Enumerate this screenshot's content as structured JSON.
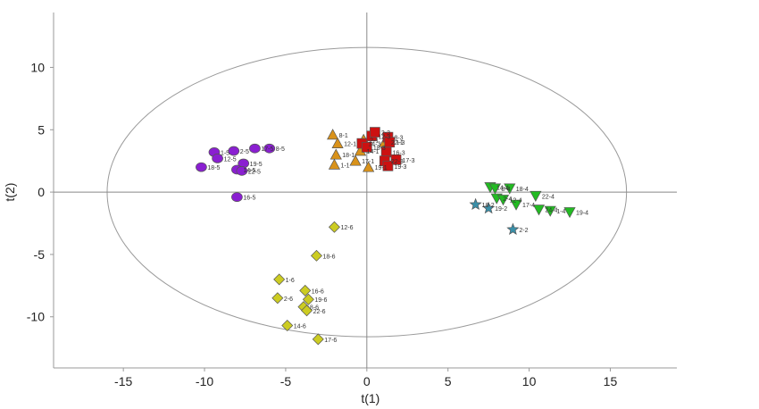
{
  "chart_data": {
    "type": "scatter",
    "title": "",
    "xlabel": "t(1)",
    "ylabel": "t(2)",
    "xlim": [
      -19.3,
      19.1
    ],
    "ylim": [
      -14.1,
      14.4
    ],
    "xticks": [
      -15,
      -10,
      -5,
      0,
      5,
      10,
      15
    ],
    "yticks": [
      -10,
      -5,
      0,
      5,
      10
    ],
    "xtick_labels": [
      "-15",
      "-10",
      "-5",
      "0",
      "5",
      "10",
      "15"
    ],
    "ytick_labels": [
      "-10",
      "-5",
      "0",
      "5",
      "10"
    ],
    "grid": false,
    "zero_lines": true,
    "confidence_ellipse": {
      "center": [
        0,
        0
      ],
      "rx": 16,
      "ry": 11.6
    },
    "series": [
      {
        "group": "1",
        "marker": "triangle-up",
        "color": "#d9921a",
        "points": [
          {
            "label": "8-1",
            "x": -2.1,
            "y": 4.6
          },
          {
            "label": "2-1",
            "x": -0.2,
            "y": 4.2
          },
          {
            "label": "12-1",
            "x": -1.8,
            "y": 3.9
          },
          {
            "label": "18-1",
            "x": -1.9,
            "y": 3.0
          },
          {
            "label": "1-1",
            "x": -2.0,
            "y": 2.2
          },
          {
            "label": "17-1",
            "x": -0.7,
            "y": 2.5
          },
          {
            "label": "22-1",
            "x": 1.1,
            "y": 4.0
          },
          {
            "label": "19-1",
            "x": 0.1,
            "y": 2.0
          },
          {
            "label": "14-1",
            "x": -0.4,
            "y": 3.3
          }
        ]
      },
      {
        "group": "3",
        "marker": "square",
        "color": "#cc1111",
        "points": [
          {
            "label": "14-3",
            "x": -0.3,
            "y": 3.9
          },
          {
            "label": "12-3",
            "x": 0.3,
            "y": 4.5
          },
          {
            "label": "2-3",
            "x": 0.5,
            "y": 4.8
          },
          {
            "label": "8-3",
            "x": 1.3,
            "y": 4.4
          },
          {
            "label": "1-3",
            "x": 1.4,
            "y": 4.0
          },
          {
            "label": "16-3",
            "x": 1.2,
            "y": 3.2
          },
          {
            "label": "17-3",
            "x": 1.8,
            "y": 2.6
          },
          {
            "label": "22-3",
            "x": 1.1,
            "y": 2.5
          },
          {
            "label": "19-3",
            "x": 1.3,
            "y": 2.1
          },
          {
            "label": "18-3",
            "x": 0.0,
            "y": 3.6
          }
        ]
      },
      {
        "group": "4",
        "marker": "triangle-down",
        "color": "#22bb22",
        "points": [
          {
            "label": "14-4",
            "x": 7.6,
            "y": 0.4
          },
          {
            "label": "8-4",
            "x": 7.9,
            "y": 0.3
          },
          {
            "label": "18-4",
            "x": 8.8,
            "y": 0.3
          },
          {
            "label": "22-4",
            "x": 10.4,
            "y": -0.3
          },
          {
            "label": "2-4",
            "x": 8.0,
            "y": -0.5
          },
          {
            "label": "17-4",
            "x": 9.2,
            "y": -1.0
          },
          {
            "label": "24-4",
            "x": 10.6,
            "y": -1.4
          },
          {
            "label": "1-4",
            "x": 11.3,
            "y": -1.5
          },
          {
            "label": "19-4",
            "x": 12.5,
            "y": -1.6
          },
          {
            "label": "12-4",
            "x": 8.4,
            "y": -0.6
          }
        ]
      },
      {
        "group": "2",
        "marker": "star",
        "color": "#3a8fa8",
        "points": [
          {
            "label": "18-2",
            "x": 6.7,
            "y": -1.0
          },
          {
            "label": "19-2",
            "x": 7.5,
            "y": -1.3
          },
          {
            "label": "2-2",
            "x": 9.0,
            "y": -3.0
          }
        ]
      },
      {
        "group": "5",
        "marker": "circle",
        "color": "#8a1fd1",
        "points": [
          {
            "label": "1-5",
            "x": -9.4,
            "y": 3.2
          },
          {
            "label": "2-5",
            "x": -8.2,
            "y": 3.3
          },
          {
            "label": "17-5",
            "x": -6.9,
            "y": 3.5
          },
          {
            "label": "8-5",
            "x": -6.0,
            "y": 3.5
          },
          {
            "label": "12-5",
            "x": -9.2,
            "y": 2.7
          },
          {
            "label": "19-5",
            "x": -7.6,
            "y": 2.3
          },
          {
            "label": "18-5",
            "x": -10.2,
            "y": 2.0
          },
          {
            "label": "14-5",
            "x": -8.0,
            "y": 1.8
          },
          {
            "label": "22-5",
            "x": -7.7,
            "y": 1.7
          },
          {
            "label": "16-5",
            "x": -8.0,
            "y": -0.4
          }
        ]
      },
      {
        "group": "6",
        "marker": "diamond",
        "color": "#cccc22",
        "points": [
          {
            "label": "12-6",
            "x": -2.0,
            "y": -2.8
          },
          {
            "label": "18-6",
            "x": -3.1,
            "y": -5.1
          },
          {
            "label": "1-6",
            "x": -5.4,
            "y": -7.0
          },
          {
            "label": "16-6",
            "x": -3.8,
            "y": -7.9
          },
          {
            "label": "2-6",
            "x": -5.5,
            "y": -8.5
          },
          {
            "label": "19-6",
            "x": -3.6,
            "y": -8.6
          },
          {
            "label": "8-6",
            "x": -3.9,
            "y": -9.2
          },
          {
            "label": "22-6",
            "x": -3.7,
            "y": -9.5
          },
          {
            "label": "14-6",
            "x": -4.9,
            "y": -10.7
          },
          {
            "label": "17-6",
            "x": -3.0,
            "y": -11.8
          }
        ]
      }
    ]
  }
}
